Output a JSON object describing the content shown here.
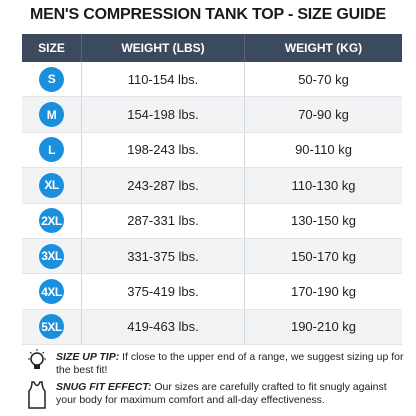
{
  "header": {
    "title": "MEN'S COMPRESSION TANK TOP - SIZE GUIDE"
  },
  "table": {
    "columns": [
      "SIZE",
      "WEIGHT (LBS)",
      "WEIGHT (KG)"
    ],
    "rows": [
      [
        "S",
        "110-154 lbs.",
        "50-70 kg"
      ],
      [
        "M",
        "154-198 lbs.",
        "70-90 kg"
      ],
      [
        "L",
        "198-243 lbs.",
        "90-110 kg"
      ],
      [
        "XL",
        "243-287 lbs.",
        "110-130 kg"
      ],
      [
        "2XL",
        "287-331 lbs.",
        "130-150 kg"
      ],
      [
        "3XL",
        "331-375 lbs.",
        "150-170 kg"
      ],
      [
        "4XL",
        "375-419 lbs.",
        "170-190 kg"
      ],
      [
        "5XL",
        "419-463 lbs.",
        "190-210 kg"
      ]
    ]
  },
  "tips": [
    {
      "label": "SIZE UP TIP:",
      "text": "If close to the upper end of a range, we suggest sizing up for the best fit!"
    },
    {
      "label": "SNUG FIT EFFECT:",
      "text": "Our sizes are carefully crafted to fit snugly against your body for maximum comfort and all-day effectiveness."
    }
  ]
}
